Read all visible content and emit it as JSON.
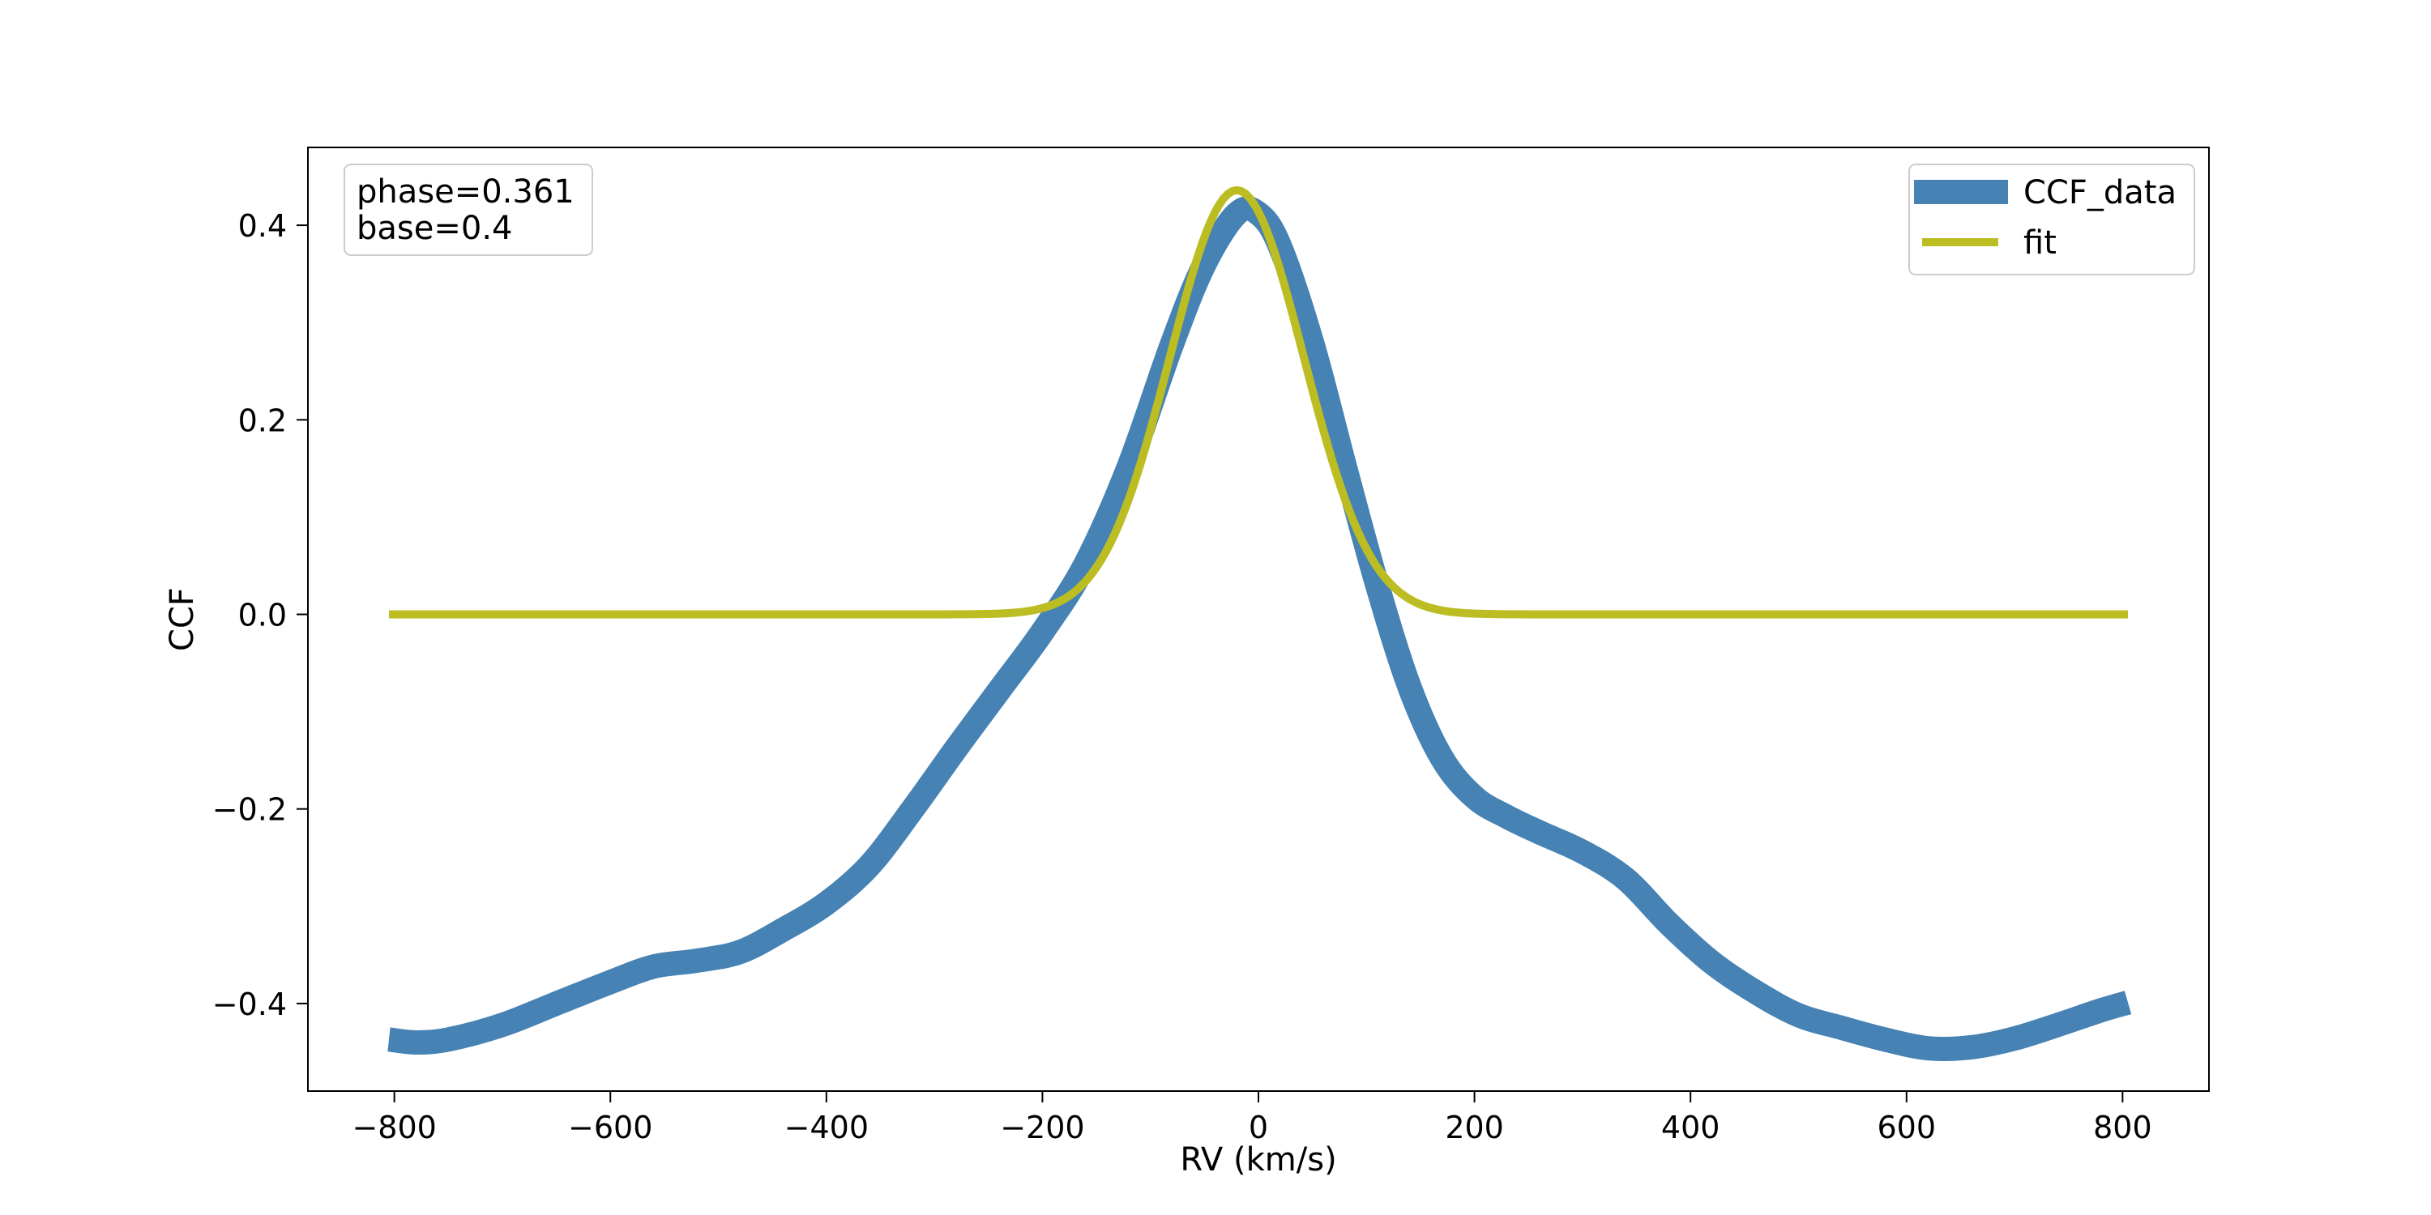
{
  "chart_data": {
    "type": "line",
    "title": "",
    "xlabel": "RV (km/s)",
    "ylabel": "CCF",
    "xlim": [
      -880,
      880
    ],
    "ylim": [
      -0.49,
      0.48
    ],
    "xticks": [
      -800,
      -600,
      -400,
      -200,
      0,
      200,
      400,
      600,
      800
    ],
    "xtick_labels": [
      "−800",
      "−600",
      "−400",
      "−200",
      "0",
      "200",
      "400",
      "600",
      "800"
    ],
    "yticks": [
      -0.4,
      -0.2,
      0.0,
      0.2,
      0.4
    ],
    "ytick_labels": [
      "−0.4",
      "−0.2",
      "0.0",
      "0.2",
      "0.4"
    ],
    "grid": false,
    "legend_position": "top-right",
    "annotation": {
      "position": "top-left",
      "lines": [
        "phase=0.361",
        "base=0.4"
      ]
    },
    "series": [
      {
        "name": "CCF_data",
        "color": "#4682b4",
        "style": "thick",
        "x": [
          -805,
          -780,
          -750,
          -700,
          -650,
          -600,
          -560,
          -520,
          -480,
          -440,
          -400,
          -360,
          -320,
          -280,
          -240,
          -200,
          -160,
          -120,
          -80,
          -50,
          -20,
          0,
          20,
          50,
          80,
          110,
          140,
          170,
          200,
          230,
          260,
          300,
          340,
          380,
          420,
          460,
          500,
          540,
          580,
          620,
          660,
          700,
          740,
          780,
          805
        ],
        "y": [
          -0.437,
          -0.44,
          -0.437,
          -0.422,
          -0.4,
          -0.378,
          -0.362,
          -0.356,
          -0.347,
          -0.324,
          -0.297,
          -0.258,
          -0.2,
          -0.138,
          -0.078,
          -0.018,
          0.052,
          0.152,
          0.278,
          0.36,
          0.412,
          0.412,
          0.378,
          0.278,
          0.152,
          0.03,
          -0.075,
          -0.148,
          -0.188,
          -0.208,
          -0.224,
          -0.244,
          -0.272,
          -0.318,
          -0.358,
          -0.388,
          -0.412,
          -0.425,
          -0.437,
          -0.446,
          -0.445,
          -0.436,
          -0.422,
          -0.407,
          -0.399
        ]
      },
      {
        "name": "fit",
        "color": "#bcbd22",
        "style": "medium",
        "gaussian": {
          "amplitude": 0.436,
          "center": -20,
          "sigma": 62,
          "offset": 0.0
        },
        "x_range": [
          -805,
          805
        ]
      }
    ]
  }
}
